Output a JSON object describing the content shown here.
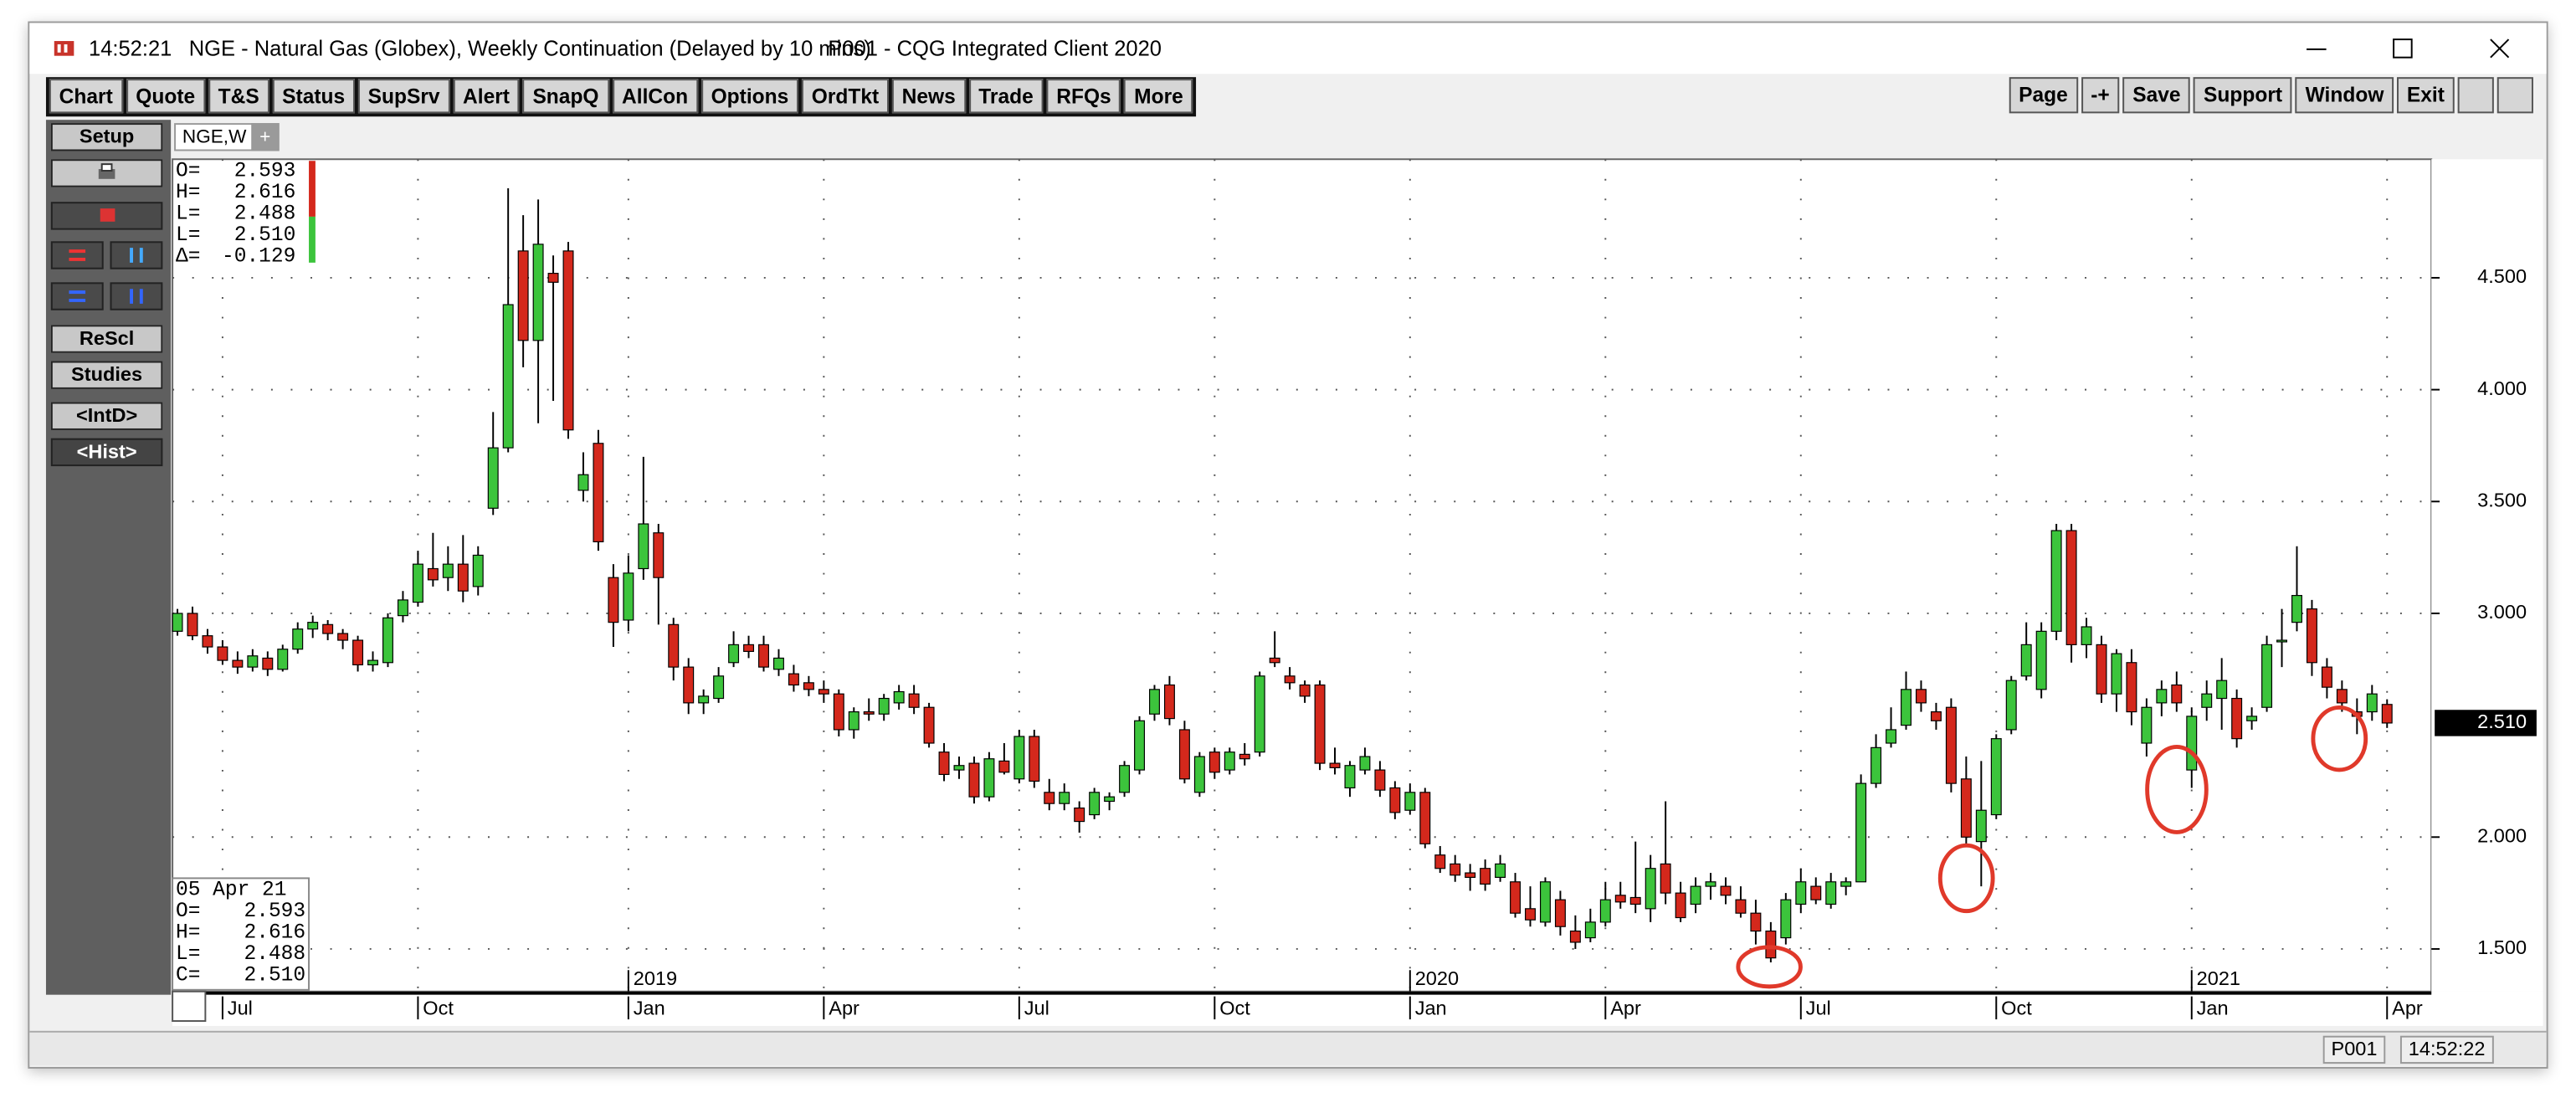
{
  "title_bar": {
    "time": "14:52:21",
    "title": "NGE - Natural Gas (Globex), Weekly Continuation (Delayed by 10 mins)",
    "app": "P001 - CQG Integrated Client 2020"
  },
  "toolbar": [
    "Chart",
    "Quote",
    "T&S",
    "Status",
    "SupSrv",
    "Alert",
    "SnapQ",
    "AllCon",
    "Options",
    "OrdTkt",
    "News",
    "Trade",
    "RFQs",
    "More"
  ],
  "toolbar_right": [
    "Page",
    "-+",
    "Save",
    "Support",
    "Window",
    "Exit"
  ],
  "sidebar": {
    "setup": "Setup",
    "rescale": "ReScl",
    "studies": "Studies",
    "intraday": "<IntD>",
    "history": "<Hist>"
  },
  "tabs": {
    "active": "NGE,W",
    "add": "+"
  },
  "ohlc_box": {
    "rows": [
      [
        "O=",
        "2.593"
      ],
      [
        "H=",
        "2.616"
      ],
      [
        "L=",
        "2.488"
      ],
      [
        "L=",
        "2.510"
      ],
      [
        "Δ=",
        "-0.129"
      ]
    ]
  },
  "date_box": {
    "date": "05 Apr 21",
    "rows": [
      [
        "O=",
        "2.593"
      ],
      [
        "H=",
        "2.616"
      ],
      [
        "L=",
        "2.488"
      ],
      [
        "C=",
        "2.510"
      ]
    ]
  },
  "status_bar": {
    "page": "P001",
    "time": "14:52:22"
  },
  "chart_data": {
    "type": "candlestick",
    "up_color": "#3cc43c",
    "down_color": "#d4281c",
    "grid": true,
    "xlim": [
      -0.33,
      149.95
    ],
    "ylim": [
      1.31,
      5.03
    ],
    "yticks": [
      {
        "value": 1.5,
        "label": "1.500"
      },
      {
        "value": 2,
        "label": "2.000"
      },
      {
        "value": 3,
        "label": "3.000"
      },
      {
        "value": 3.5,
        "label": "3.500"
      },
      {
        "value": 4,
        "label": "4.000"
      },
      {
        "value": 4.5,
        "label": "4.500"
      }
    ],
    "xticks": [
      {
        "value": 3,
        "label": "Jul"
      },
      {
        "value": 16,
        "label": "Oct"
      },
      {
        "value": 30,
        "label": "Jan"
      },
      {
        "value": 43,
        "label": "Apr"
      },
      {
        "value": 56,
        "label": "Jul"
      },
      {
        "value": 69,
        "label": "Oct"
      },
      {
        "value": 82,
        "label": "Jan"
      },
      {
        "value": 95,
        "label": "Apr"
      },
      {
        "value": 108,
        "label": "Jul"
      },
      {
        "value": 121,
        "label": "Oct"
      },
      {
        "value": 134,
        "label": "Jan"
      },
      {
        "value": 147,
        "label": "Apr"
      }
    ],
    "year_ticks": [
      {
        "value": 30,
        "label": "2019"
      },
      {
        "value": 82,
        "label": "2020"
      },
      {
        "value": 134,
        "label": "2021"
      }
    ],
    "last_price": {
      "value": 2.51,
      "label": "2.510"
    },
    "open": [
      2.92,
      3.0,
      2.9,
      2.85,
      2.79,
      2.76,
      2.8,
      2.75,
      2.84,
      2.93,
      2.95,
      2.91,
      2.88,
      2.77,
      2.78,
      2.99,
      3.05,
      3.2,
      3.16,
      3.22,
      3.12,
      3.47,
      3.74,
      4.62,
      4.22,
      4.52,
      4.62,
      3.55,
      3.76,
      3.16,
      2.97,
      3.2,
      3.36,
      2.95,
      2.76,
      2.6,
      2.62,
      2.78,
      2.86,
      2.86,
      2.75,
      2.73,
      2.69,
      2.66,
      2.64,
      2.48,
      2.56,
      2.55,
      2.6,
      2.64,
      2.58,
      2.38,
      2.3,
      2.33,
      2.18,
      2.34,
      2.26,
      2.45,
      2.2,
      2.15,
      2.13,
      2.1,
      2.16,
      2.2,
      2.3,
      2.55,
      2.68,
      2.48,
      2.2,
      2.38,
      2.3,
      2.37,
      2.38,
      2.8,
      2.72,
      2.68,
      2.68,
      2.33,
      2.22,
      2.3,
      2.3,
      2.22,
      2.12,
      2.2,
      1.92,
      1.88,
      1.84,
      1.86,
      1.82,
      1.8,
      1.68,
      1.62,
      1.72,
      1.58,
      1.55,
      1.62,
      1.74,
      1.73,
      1.68,
      1.88,
      1.75,
      1.7,
      1.78,
      1.78,
      1.72,
      1.66,
      1.58,
      1.55,
      1.7,
      1.78,
      1.7,
      1.78,
      1.8,
      2.24,
      2.42,
      2.5,
      2.66,
      2.56,
      2.58,
      2.26,
      1.98,
      2.1,
      2.48,
      2.72,
      2.66,
      2.92,
      3.37,
      2.86,
      2.86,
      2.64,
      2.78,
      2.42,
      2.6,
      2.68,
      2.3,
      2.58,
      2.62,
      2.62,
      2.52,
      2.58,
      2.88,
      2.96,
      3.02,
      2.76,
      2.66,
      2.56,
      2.56,
      2.593
    ],
    "high": [
      3.02,
      3.03,
      2.93,
      2.88,
      2.83,
      2.84,
      2.83,
      2.86,
      2.96,
      2.99,
      2.97,
      2.93,
      2.9,
      2.83,
      3.0,
      3.1,
      3.28,
      3.36,
      3.3,
      3.35,
      3.3,
      3.9,
      4.9,
      4.78,
      4.85,
      4.6,
      4.66,
      3.72,
      3.82,
      3.22,
      3.26,
      3.7,
      3.4,
      2.98,
      2.8,
      2.66,
      2.76,
      2.92,
      2.9,
      2.9,
      2.84,
      2.77,
      2.72,
      2.7,
      2.66,
      2.58,
      2.62,
      2.64,
      2.68,
      2.68,
      2.6,
      2.42,
      2.36,
      2.36,
      2.38,
      2.42,
      2.48,
      2.48,
      2.26,
      2.24,
      2.16,
      2.22,
      2.2,
      2.34,
      2.54,
      2.68,
      2.72,
      2.52,
      2.38,
      2.4,
      2.4,
      2.42,
      2.74,
      2.92,
      2.76,
      2.7,
      2.7,
      2.4,
      2.34,
      2.4,
      2.34,
      2.25,
      2.24,
      2.22,
      1.96,
      1.92,
      1.88,
      1.9,
      1.92,
      1.84,
      1.78,
      1.82,
      1.76,
      1.65,
      1.68,
      1.8,
      1.8,
      1.98,
      1.92,
      2.16,
      1.8,
      1.82,
      1.84,
      1.82,
      1.78,
      1.72,
      1.62,
      1.75,
      1.86,
      1.82,
      1.84,
      1.82,
      2.28,
      2.46,
      2.58,
      2.74,
      2.7,
      2.6,
      2.62,
      2.36,
      2.34,
      2.46,
      2.72,
      2.96,
      2.96,
      3.4,
      3.4,
      2.98,
      2.9,
      2.84,
      2.84,
      2.62,
      2.7,
      2.74,
      2.58,
      2.7,
      2.8,
      2.66,
      2.58,
      2.9,
      3.02,
      3.3,
      3.06,
      2.8,
      2.7,
      2.62,
      2.68,
      2.616
    ],
    "low": [
      2.9,
      2.88,
      2.82,
      2.77,
      2.73,
      2.74,
      2.72,
      2.74,
      2.82,
      2.89,
      2.88,
      2.84,
      2.74,
      2.74,
      2.76,
      2.96,
      3.03,
      3.12,
      3.1,
      3.05,
      3.08,
      3.44,
      3.72,
      4.1,
      3.85,
      3.95,
      3.78,
      3.5,
      3.28,
      2.85,
      2.92,
      3.15,
      2.95,
      2.7,
      2.55,
      2.55,
      2.6,
      2.76,
      2.8,
      2.74,
      2.72,
      2.65,
      2.63,
      2.6,
      2.45,
      2.44,
      2.52,
      2.52,
      2.57,
      2.55,
      2.4,
      2.25,
      2.26,
      2.15,
      2.16,
      2.28,
      2.24,
      2.22,
      2.12,
      2.12,
      2.02,
      2.08,
      2.12,
      2.18,
      2.28,
      2.52,
      2.5,
      2.24,
      2.18,
      2.26,
      2.28,
      2.32,
      2.36,
      2.76,
      2.66,
      2.6,
      2.3,
      2.28,
      2.18,
      2.28,
      2.18,
      2.08,
      2.1,
      1.95,
      1.84,
      1.8,
      1.76,
      1.76,
      1.8,
      1.64,
      1.6,
      1.6,
      1.56,
      1.5,
      1.53,
      1.6,
      1.68,
      1.66,
      1.62,
      1.7,
      1.62,
      1.66,
      1.72,
      1.7,
      1.64,
      1.52,
      1.44,
      1.52,
      1.66,
      1.7,
      1.68,
      1.74,
      1.8,
      2.22,
      2.4,
      2.48,
      2.56,
      2.48,
      2.2,
      1.96,
      1.78,
      2.08,
      2.46,
      2.7,
      2.62,
      2.88,
      2.78,
      2.8,
      2.6,
      2.56,
      2.5,
      2.36,
      2.54,
      2.56,
      2.22,
      2.52,
      2.48,
      2.4,
      2.48,
      2.56,
      2.76,
      2.92,
      2.72,
      2.62,
      2.56,
      2.46,
      2.52,
      2.488
    ],
    "close": [
      3.0,
      2.9,
      2.85,
      2.79,
      2.76,
      2.81,
      2.75,
      2.84,
      2.93,
      2.96,
      2.91,
      2.88,
      2.77,
      2.79,
      2.98,
      3.06,
      3.22,
      3.15,
      3.22,
      3.1,
      3.26,
      3.74,
      4.38,
      4.22,
      4.65,
      4.48,
      3.82,
      3.62,
      3.32,
      2.96,
      3.18,
      3.4,
      3.16,
      2.76,
      2.6,
      2.63,
      2.72,
      2.86,
      2.83,
      2.76,
      2.8,
      2.68,
      2.66,
      2.64,
      2.48,
      2.56,
      2.55,
      2.62,
      2.65,
      2.58,
      2.42,
      2.28,
      2.32,
      2.18,
      2.35,
      2.29,
      2.45,
      2.25,
      2.15,
      2.2,
      2.07,
      2.2,
      2.18,
      2.32,
      2.52,
      2.66,
      2.53,
      2.26,
      2.36,
      2.29,
      2.38,
      2.35,
      2.72,
      2.78,
      2.69,
      2.63,
      2.33,
      2.31,
      2.32,
      2.36,
      2.21,
      2.11,
      2.2,
      1.97,
      1.86,
      1.83,
      1.82,
      1.79,
      1.88,
      1.66,
      1.63,
      1.8,
      1.6,
      1.53,
      1.62,
      1.72,
      1.71,
      1.7,
      1.86,
      1.75,
      1.64,
      1.78,
      1.8,
      1.74,
      1.66,
      1.58,
      1.46,
      1.72,
      1.8,
      1.72,
      1.8,
      1.8,
      2.24,
      2.4,
      2.48,
      2.66,
      2.6,
      2.52,
      2.24,
      2.0,
      2.12,
      2.44,
      2.7,
      2.86,
      2.92,
      3.37,
      2.86,
      2.94,
      2.64,
      2.82,
      2.56,
      2.58,
      2.66,
      2.6,
      2.54,
      2.64,
      2.7,
      2.44,
      2.54,
      2.86,
      2.88,
      3.08,
      2.78,
      2.67,
      2.6,
      2.54,
      2.64,
      2.51
    ]
  }
}
